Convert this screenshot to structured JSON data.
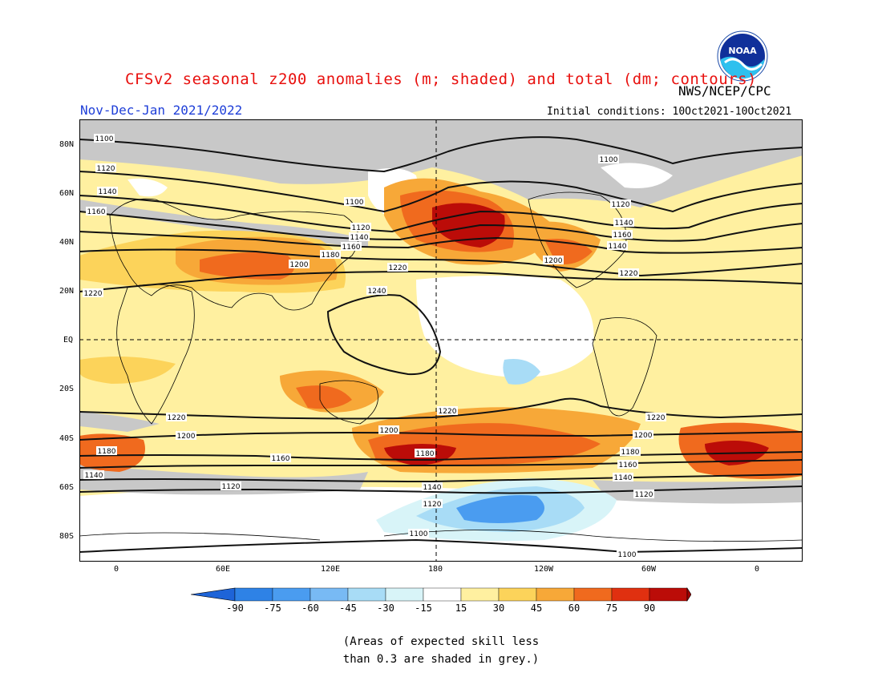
{
  "title": "CFSv2 seasonal z200 anomalies (m; shaded) and total (dm; contours)",
  "period": "Nov-Dec-Jan 2021/2022",
  "agency": "NWS/NCEP/CPC",
  "logo_text": "NOAA",
  "initial_conditions": "Initial conditions: 10Oct2021-10Oct2021",
  "lat_labels": [
    "80N",
    "60N",
    "40N",
    "20N",
    "EQ",
    "20S",
    "40S",
    "60S",
    "80S"
  ],
  "lon_labels": [
    "0",
    "60E",
    "120E",
    "180",
    "120W",
    "60W",
    "0"
  ],
  "contour_labels": [
    "1100",
    "1120",
    "1140",
    "1160",
    "1180",
    "1200",
    "1220",
    "1240"
  ],
  "colorbar": {
    "labels": [
      "-90",
      "-75",
      "-60",
      "-45",
      "-30",
      "-15",
      "15",
      "30",
      "45",
      "60",
      "75",
      "90"
    ],
    "colors": [
      "#1e64d8",
      "#2e82e6",
      "#4a9cf0",
      "#78baf4",
      "#a8dcf6",
      "#d8f4f8",
      "#ffffff",
      "#fff0a0",
      "#fcd35a",
      "#f7a838",
      "#f06a1e",
      "#e03010",
      "#bb0c08",
      "#a00000"
    ]
  },
  "note_lines": [
    "(Areas of expected skill less",
    "than 0.3 are shaded in grey.)"
  ],
  "style": {
    "title_color": "#e8100e",
    "period_color": "#1f3fd8",
    "grey": "#c8c8c8"
  }
}
